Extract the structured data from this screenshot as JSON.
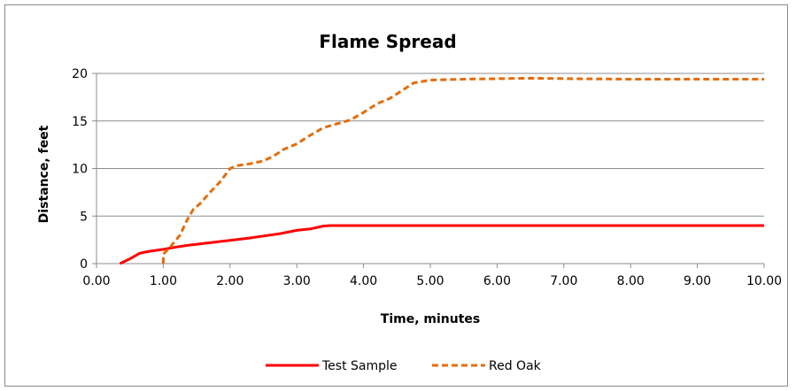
{
  "chart_data": {
    "type": "line",
    "title": "Flame Spread",
    "xlabel": "Time, minutes",
    "ylabel": "Distance, feet",
    "xlim": [
      0,
      10
    ],
    "ylim": [
      0,
      20
    ],
    "x_ticks": [
      "0.00",
      "1.00",
      "2.00",
      "3.00",
      "4.00",
      "5.00",
      "6.00",
      "7.00",
      "8.00",
      "9.00",
      "10.00"
    ],
    "y_ticks": [
      "0",
      "5",
      "10",
      "15",
      "20"
    ],
    "grid": "horizontal",
    "legend_position": "bottom",
    "series": [
      {
        "name": "Test Sample",
        "color": "#ff0000",
        "style": "solid",
        "points": [
          [
            0.35,
            0.0
          ],
          [
            0.5,
            0.5
          ],
          [
            0.65,
            1.1
          ],
          [
            0.8,
            1.3
          ],
          [
            1.0,
            1.5
          ],
          [
            1.2,
            1.75
          ],
          [
            1.4,
            1.95
          ],
          [
            1.7,
            2.2
          ],
          [
            2.0,
            2.45
          ],
          [
            2.3,
            2.7
          ],
          [
            2.5,
            2.9
          ],
          [
            2.75,
            3.15
          ],
          [
            3.0,
            3.5
          ],
          [
            3.2,
            3.65
          ],
          [
            3.4,
            3.95
          ],
          [
            3.5,
            4.0
          ],
          [
            4.0,
            4.0
          ],
          [
            5.0,
            4.0
          ],
          [
            6.0,
            4.0
          ],
          [
            7.0,
            4.0
          ],
          [
            8.0,
            4.0
          ],
          [
            9.0,
            4.0
          ],
          [
            10.0,
            4.0
          ]
        ]
      },
      {
        "name": "Red Oak",
        "color": "#e46c0a",
        "style": "dashed",
        "points": [
          [
            1.0,
            0.0
          ],
          [
            1.0,
            1.0
          ],
          [
            1.1,
            1.7
          ],
          [
            1.25,
            3.0
          ],
          [
            1.35,
            4.5
          ],
          [
            1.45,
            5.7
          ],
          [
            1.55,
            6.3
          ],
          [
            1.7,
            7.5
          ],
          [
            1.85,
            8.6
          ],
          [
            2.0,
            10.0
          ],
          [
            2.1,
            10.3
          ],
          [
            2.3,
            10.5
          ],
          [
            2.5,
            10.8
          ],
          [
            2.65,
            11.3
          ],
          [
            2.8,
            12.0
          ],
          [
            3.0,
            12.6
          ],
          [
            3.2,
            13.5
          ],
          [
            3.4,
            14.3
          ],
          [
            3.6,
            14.7
          ],
          [
            3.8,
            15.1
          ],
          [
            4.0,
            15.9
          ],
          [
            4.2,
            16.8
          ],
          [
            4.4,
            17.4
          ],
          [
            4.6,
            18.3
          ],
          [
            4.75,
            19.0
          ],
          [
            5.0,
            19.3
          ],
          [
            5.5,
            19.4
          ],
          [
            6.5,
            19.5
          ],
          [
            7.0,
            19.45
          ],
          [
            8.0,
            19.4
          ],
          [
            9.0,
            19.4
          ],
          [
            10.0,
            19.4
          ]
        ]
      }
    ]
  }
}
